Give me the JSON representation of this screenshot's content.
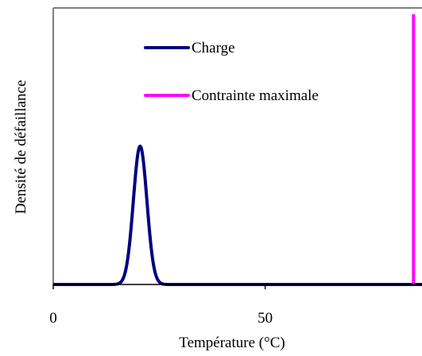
{
  "chart_data": {
    "type": "line",
    "title": "",
    "xlabel": "Température (°C)",
    "ylabel": "Densité de défaillance",
    "xlim": [
      0,
      87
    ],
    "ylim": [
      0,
      1
    ],
    "x_ticks": [
      0,
      50
    ],
    "x_tick_labels": [
      "0",
      "50"
    ],
    "grid": false,
    "legend_position": "top-right",
    "series": [
      {
        "name": "Charge",
        "color": "#000080",
        "shape": "gaussian",
        "mean": 20.5,
        "std": 1.6,
        "peak": 0.5,
        "x_range": [
          0,
          87
        ]
      },
      {
        "name": "Contrainte maximale",
        "color": "#ff00ff",
        "shape": "vertical-line",
        "x": 85,
        "y_range": [
          0,
          1
        ]
      }
    ]
  }
}
